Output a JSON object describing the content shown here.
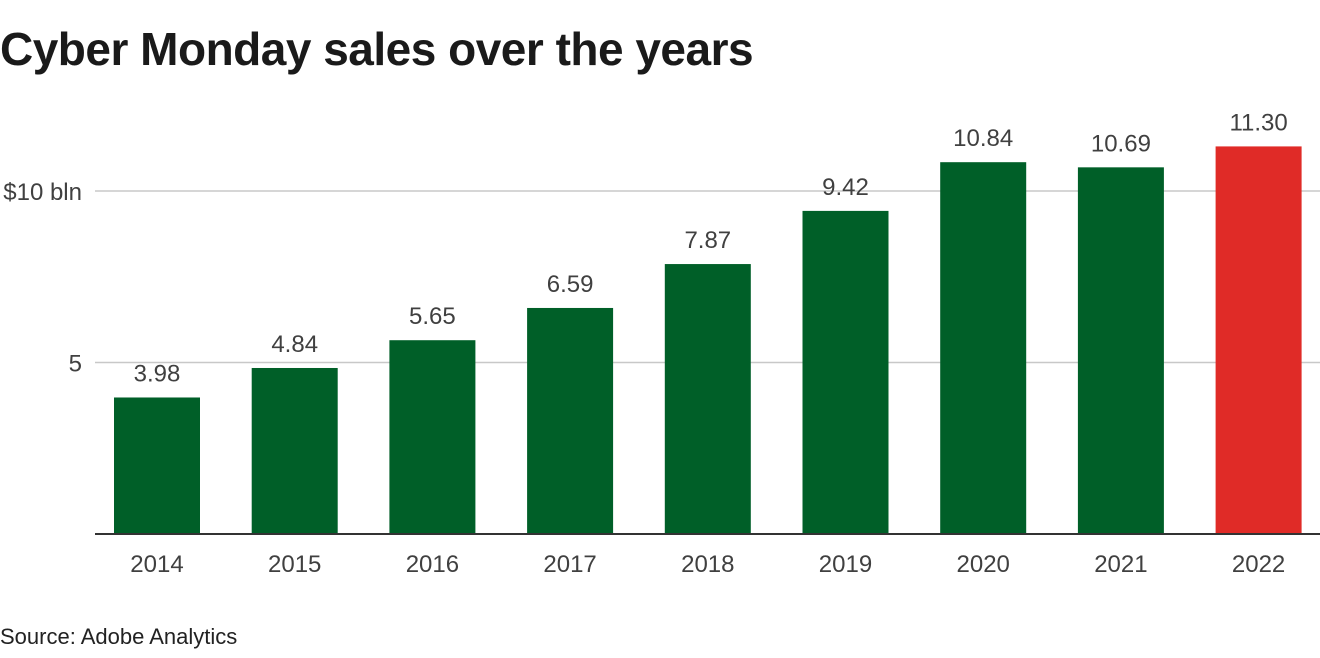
{
  "chart_data": {
    "type": "bar",
    "title": "Cyber Monday sales over the years",
    "categories": [
      "2014",
      "2015",
      "2016",
      "2017",
      "2018",
      "2019",
      "2020",
      "2021",
      "2022"
    ],
    "values": [
      3.98,
      4.84,
      5.65,
      6.59,
      7.87,
      9.42,
      10.84,
      10.69,
      11.3
    ],
    "value_labels": [
      "3.98",
      "4.84",
      "5.65",
      "6.59",
      "7.87",
      "9.42",
      "10.84",
      "10.69",
      "11.30"
    ],
    "highlight_index": 8,
    "yticks": [
      {
        "value": 5,
        "label": "5"
      },
      {
        "value": 10,
        "label": "$10 bln"
      }
    ],
    "ylim": [
      0,
      12
    ],
    "xlabel": "",
    "ylabel": "",
    "grid": true,
    "colors": {
      "bar": "#005f28",
      "highlight": "#e02b27",
      "grid": "#c8c8c8",
      "axis": "#333333"
    },
    "source": "Source: Adobe Analytics"
  }
}
